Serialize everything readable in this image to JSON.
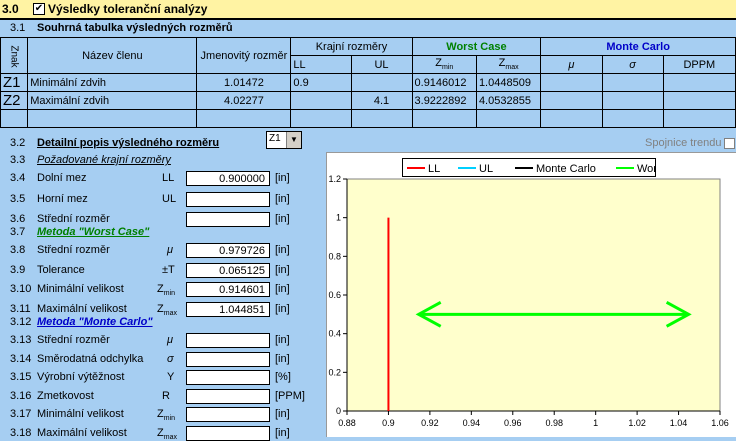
{
  "header": {
    "section_num": "3.0",
    "title": "Výsledky toleranční analýzy",
    "checkbox": "✔"
  },
  "summary": {
    "num": "3.1",
    "title": "Souhrná tabulka výsledných rozměrů",
    "col_znak": "Znak",
    "col_name": "Název členu",
    "col_nominal": "Jmenovitý rozměr",
    "col_limits": "Krajní rozměry",
    "col_ll": "LL",
    "col_ul": "UL",
    "col_worst": "Worst Case",
    "col_zmin": "Zmin",
    "col_zmax": "Zmax",
    "col_monte": "Monte Carlo",
    "col_mu": "μ",
    "col_sigma": "σ",
    "col_dppm": "DPPM",
    "rows": [
      {
        "id": "Z1",
        "name": "Minimální zdvih",
        "nominal": "1.01472",
        "ll": "0.9",
        "ul": "",
        "zmin": "0.9146012",
        "zmax": "1.0448509"
      },
      {
        "id": "Z2",
        "name": "Maximální zdvih",
        "nominal": "4.02277",
        "ll": "",
        "ul": "4.1",
        "zmin": "3.9222892",
        "zmax": "4.0532855"
      }
    ]
  },
  "detail": {
    "num": "3.2",
    "title": "Detailní popis výsledného rozměru",
    "select_value": "Z1",
    "trend_label": "Spojnice trendu",
    "req_num": "3.3",
    "req_title": "Požadované krajní rozměry",
    "items": [
      {
        "num": "3.4",
        "label": "Dolní mez",
        "sym": "LL",
        "value": "0.900000",
        "unit": "[in]"
      },
      {
        "num": "3.5",
        "label": "Horní mez",
        "sym": "UL",
        "value": "",
        "unit": "[in]"
      },
      {
        "num": "3.6",
        "label": "Střední rozměr",
        "sym": "",
        "value": "",
        "unit": "[in]"
      }
    ],
    "wc_num": "3.7",
    "wc_title": "Metoda \"Worst Case\"",
    "wc_items": [
      {
        "num": "3.8",
        "label": "Střední rozměr",
        "sym": "μ",
        "value": "0.979726",
        "unit": "[in]"
      },
      {
        "num": "3.9",
        "label": "Tolerance",
        "sym": "±T",
        "value": "0.065125",
        "unit": "[in]"
      },
      {
        "num": "3.10",
        "label": "Minimální velikost",
        "sym": "Zmin",
        "value": "0.914601",
        "unit": "[in]"
      },
      {
        "num": "3.11",
        "label": "Maximální velikost",
        "sym": "Zmax",
        "value": "1.044851",
        "unit": "[in]"
      }
    ],
    "mc_num": "3.12",
    "mc_title": "Metoda \"Monte Carlo\"",
    "mc_items": [
      {
        "num": "3.13",
        "label": "Střední rozměr",
        "sym": "μ",
        "value": "",
        "unit": "[in]"
      },
      {
        "num": "3.14",
        "label": "Směrodatná odchylka",
        "sym": "σ",
        "value": "",
        "unit": "[in]"
      },
      {
        "num": "3.15",
        "label": "Výrobní výtěžnost",
        "sym": "Y",
        "value": "",
        "unit": "[%]"
      },
      {
        "num": "3.16",
        "label": "Zmetkovost",
        "sym": "R",
        "value": "",
        "unit": "[PPM]"
      },
      {
        "num": "3.17",
        "label": "Minimální velikost",
        "sym": "Zmin",
        "value": "",
        "unit": "[in]"
      },
      {
        "num": "3.18",
        "label": "Maximální velikost",
        "sym": "Zmax",
        "value": "",
        "unit": "[in]"
      }
    ]
  },
  "chart_data": {
    "type": "line",
    "legend": [
      "LL",
      "UL",
      "Monte Carlo",
      "Worst Case"
    ],
    "colors": {
      "LL": "#ff0000",
      "UL": "#00d0ff",
      "Monte Carlo": "#000000",
      "Worst Case": "#00ff00"
    },
    "xlim": [
      0.88,
      1.06
    ],
    "ylim": [
      0,
      1.2
    ],
    "xticks": [
      "0.88",
      "0.9",
      "0.92",
      "0.94",
      "0.96",
      "0.98",
      "1",
      "1.02",
      "1.04",
      "1.06"
    ],
    "yticks": [
      "0",
      "0.2",
      "0.4",
      "0.6",
      "0.8",
      "1",
      "1.2"
    ],
    "ll_line": {
      "x": 0.9,
      "y": [
        0,
        1
      ]
    },
    "worst_case_arrow": {
      "x": [
        0.914601,
        1.044851
      ],
      "y": 0.5
    }
  }
}
